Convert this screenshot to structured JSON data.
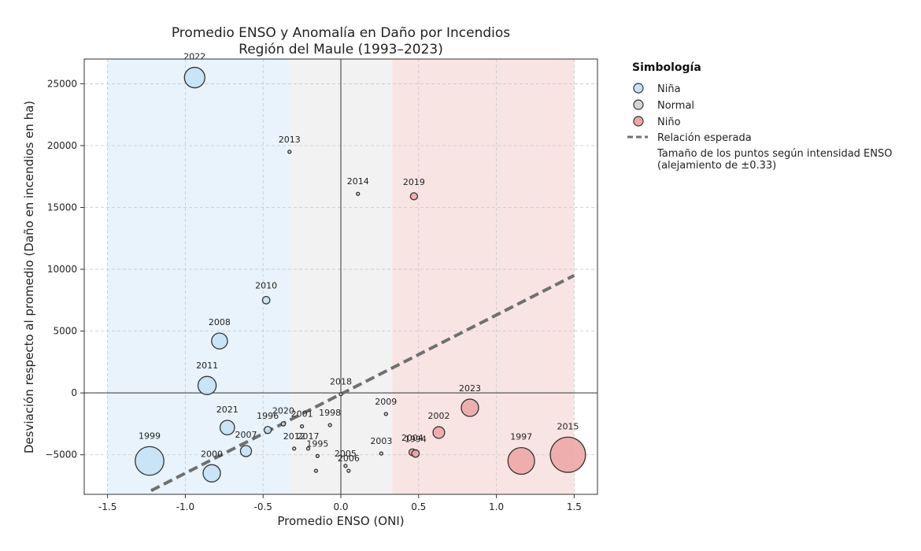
{
  "chart_data": {
    "type": "scatter",
    "title": "Promedio ENSO y Anomalía en Daño por Incendios",
    "subtitle": "Región del Maule (1993–2023)",
    "xlabel": "Promedio ENSO (ONI)",
    "ylabel": "Desviación respecto al promedio (Daño en incendios en ha)",
    "xlim": [
      -1.65,
      1.65
    ],
    "ylim": [
      -8200,
      27000
    ],
    "xticks": [
      "-1.5",
      "-1.0",
      "-0.5",
      "0.0",
      "0.5",
      "1.0",
      "1.5"
    ],
    "yticks": [
      "−5000",
      "0",
      "5000",
      "10000",
      "15000",
      "20000",
      "25000"
    ],
    "grid": true,
    "legend_position": "outside-right",
    "regions": [
      {
        "name": "Niña",
        "x_range": [
          -1.5,
          -0.33
        ],
        "color": "#e8f3fb"
      },
      {
        "name": "Normal",
        "x_range": [
          -0.33,
          0.33
        ],
        "color": "#f2f2f2"
      },
      {
        "name": "Niño",
        "x_range": [
          0.33,
          1.5
        ],
        "color": "#f9e4e4"
      }
    ],
    "colors": {
      "nina": "#c5e2f5",
      "normal": "#d4d4d4",
      "nino": "#eda7a7",
      "trend": "#707070"
    },
    "trend_line": {
      "label": "Relación esperada",
      "x": [
        -1.22,
        1.5
      ],
      "y": [
        -7900,
        9500
      ]
    },
    "points": [
      {
        "year": "2022",
        "x": -0.94,
        "y": 25500,
        "category": "nina"
      },
      {
        "year": "2013",
        "x": -0.33,
        "y": 19500,
        "category": "normal"
      },
      {
        "year": "2014",
        "x": 0.11,
        "y": 16100,
        "category": "normal"
      },
      {
        "year": "2019",
        "x": 0.47,
        "y": 15900,
        "category": "nino"
      },
      {
        "year": "2010",
        "x": -0.48,
        "y": 7500,
        "category": "nina"
      },
      {
        "year": "2008",
        "x": -0.78,
        "y": 4200,
        "category": "nina"
      },
      {
        "year": "2011",
        "x": -0.86,
        "y": 600,
        "category": "nina"
      },
      {
        "year": "2018",
        "x": 0.0,
        "y": -100,
        "category": "normal"
      },
      {
        "year": "2009",
        "x": 0.29,
        "y": -1700,
        "category": "normal"
      },
      {
        "year": "2023",
        "x": 0.83,
        "y": -1200,
        "category": "nino"
      },
      {
        "year": "1998",
        "x": -0.07,
        "y": -2600,
        "category": "normal"
      },
      {
        "year": "2020",
        "x": -0.37,
        "y": -2500,
        "category": "normal"
      },
      {
        "year": "1996",
        "x": -0.47,
        "y": -3000,
        "category": "nina"
      },
      {
        "year": "2021",
        "x": -0.73,
        "y": -2800,
        "category": "nina"
      },
      {
        "year": "2001",
        "x": -0.25,
        "y": -2700,
        "category": "normal"
      },
      {
        "year": "2017",
        "x": -0.21,
        "y": -4500,
        "category": "normal"
      },
      {
        "year": "2012",
        "x": -0.3,
        "y": -4500,
        "category": "normal"
      },
      {
        "year": "1995",
        "x": -0.15,
        "y": -5100,
        "category": "normal"
      },
      {
        "year": "2002",
        "x": 0.63,
        "y": -3200,
        "category": "nino"
      },
      {
        "year": "2004",
        "x": 0.46,
        "y": -4800,
        "category": "nino"
      },
      {
        "year": "1994",
        "x": 0.48,
        "y": -4900,
        "category": "nino"
      },
      {
        "year": "2007",
        "x": -0.61,
        "y": -4700,
        "category": "nina"
      },
      {
        "year": "2005",
        "x": 0.03,
        "y": -5900,
        "category": "normal"
      },
      {
        "year": "2006",
        "x": 0.05,
        "y": -6300,
        "category": "normal"
      },
      {
        "year": "2003",
        "x": 0.26,
        "y": -4900,
        "category": "normal"
      },
      {
        "year": "1999",
        "x": -1.23,
        "y": -5500,
        "category": "nina"
      },
      {
        "year": "2000",
        "x": -0.83,
        "y": -6500,
        "category": "nina"
      },
      {
        "year": "1997",
        "x": 1.16,
        "y": -5500,
        "category": "nino"
      },
      {
        "year": "2015",
        "x": 1.46,
        "y": -5000,
        "category": "nino"
      },
      {
        "year": "",
        "x": -0.16,
        "y": -6300,
        "category": "normal"
      }
    ]
  },
  "legend": {
    "title": "Simbología",
    "items": [
      {
        "label": "Niña",
        "category": "nina"
      },
      {
        "label": "Normal",
        "category": "normal"
      },
      {
        "label": "Niño",
        "category": "nino"
      }
    ],
    "trend_label": "Relación esperada",
    "note_line1": "Tamaño de los puntos según intensidad ENSO",
    "note_line2": "(alejamiento de ±0.33)"
  }
}
